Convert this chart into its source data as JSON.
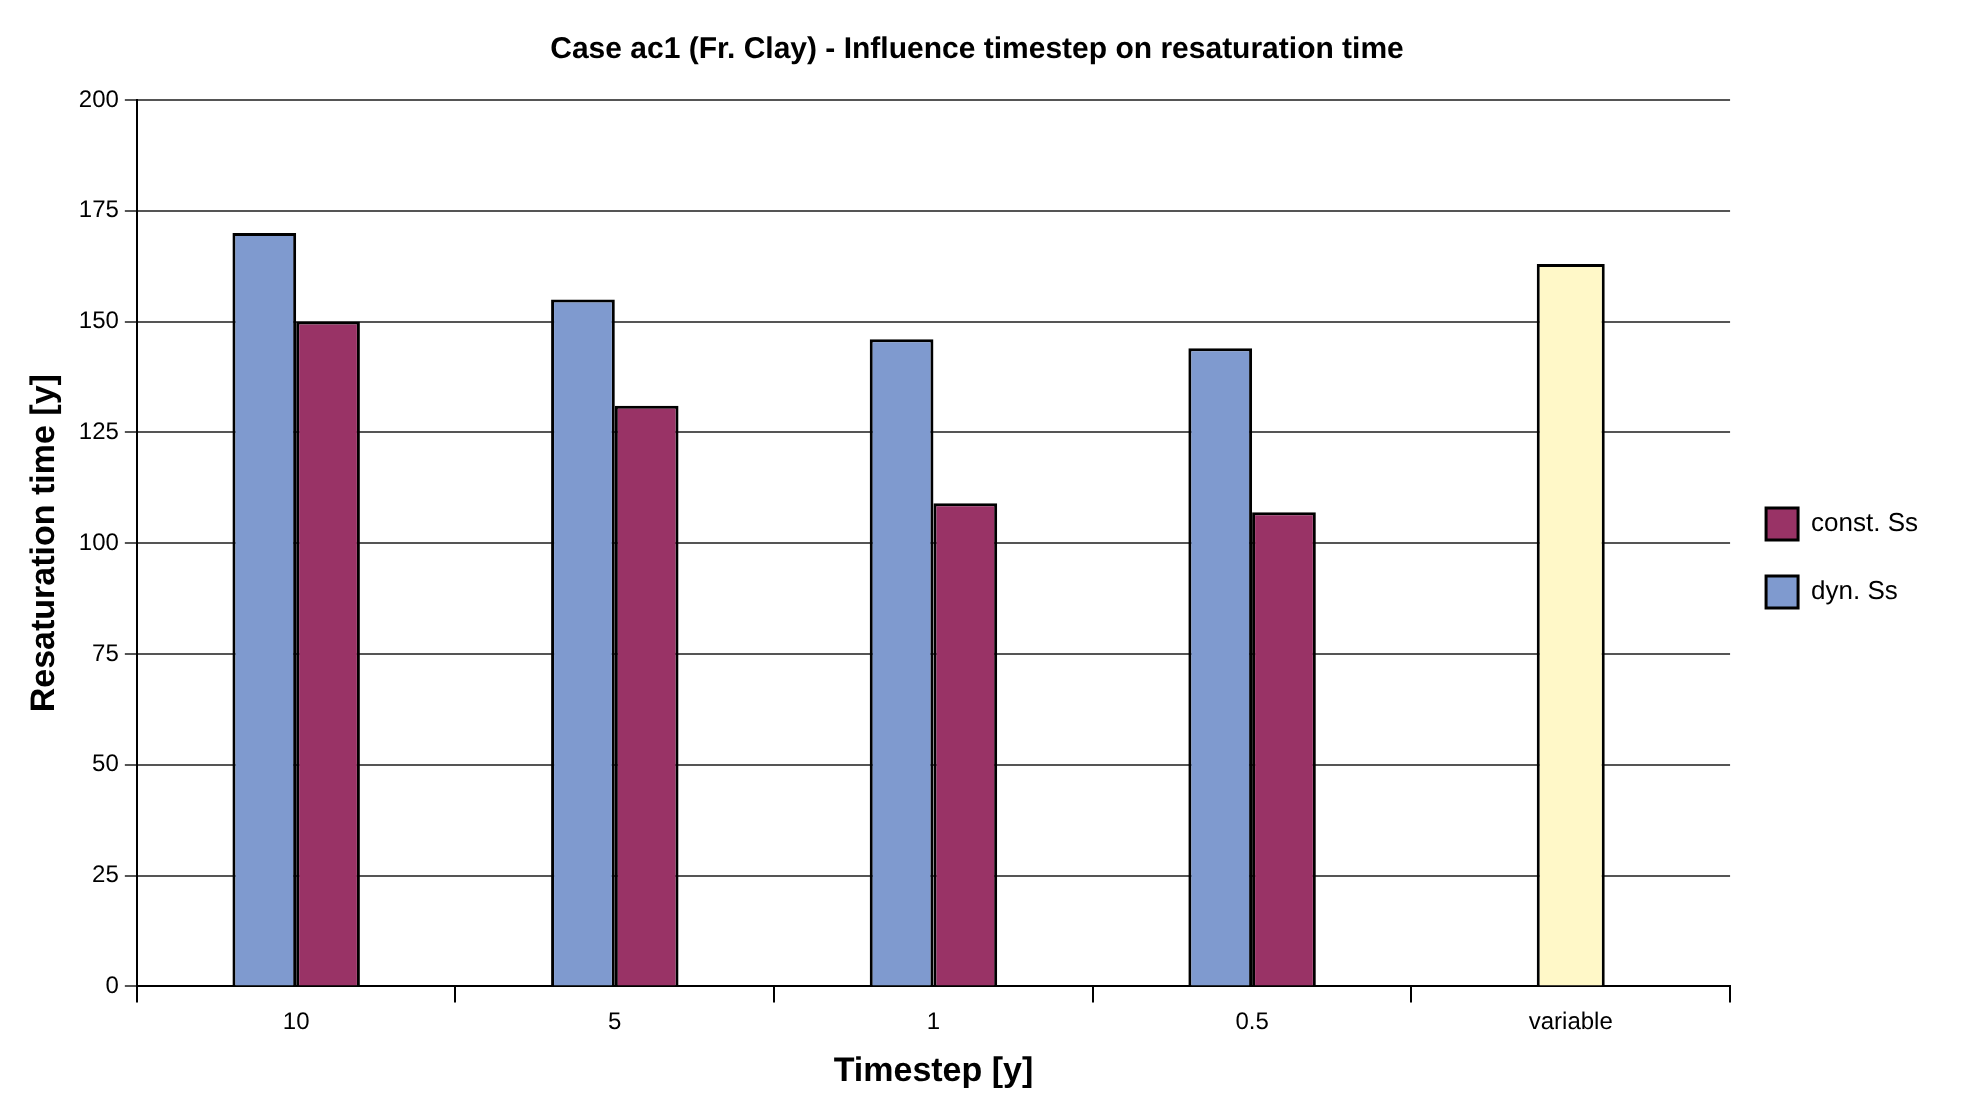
{
  "chart_data": {
    "type": "bar",
    "title": "Case ac1 (Fr. Clay) - Influence timestep on resaturation time",
    "xlabel": "Timestep [y]",
    "ylabel": "Resaturation time [y]",
    "categories": [
      "10",
      "5",
      "1",
      "0.5",
      "variable"
    ],
    "series": [
      {
        "name": "dyn. Ss",
        "color": "#7f9acf",
        "values": [
          170,
          155,
          146,
          144,
          null
        ]
      },
      {
        "name": "const. Ss",
        "color": "#993366",
        "values": [
          150,
          131,
          109,
          107,
          null
        ]
      },
      {
        "color": "#fff8c8",
        "values": [
          null,
          null,
          null,
          null,
          163
        ]
      }
    ],
    "ylim": [
      0,
      200
    ],
    "yticks": [
      0,
      25,
      50,
      75,
      100,
      125,
      150,
      175,
      200
    ],
    "grid": "y",
    "legend": "right"
  }
}
